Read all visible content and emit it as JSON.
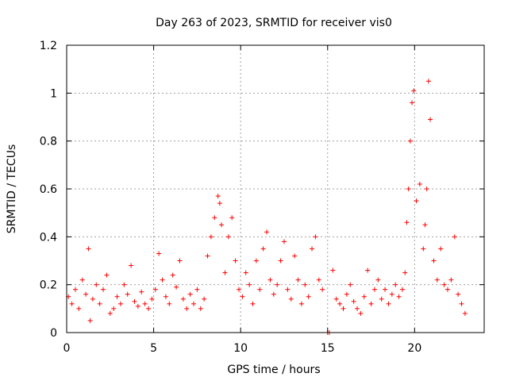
{
  "chart_data": {
    "type": "scatter",
    "title": "Day 263 of 2023, SRMTID for receiver vis0",
    "xlabel": "GPS time / hours",
    "ylabel": "SRMTID / TECUs",
    "xlim": [
      0,
      24
    ],
    "ylim": [
      0,
      1.2
    ],
    "x_ticks": [
      0,
      5,
      10,
      15,
      20
    ],
    "x_tick_labels": [
      "0",
      "5",
      "10",
      "15",
      "20"
    ],
    "y_ticks": [
      0,
      0.2,
      0.4,
      0.6,
      0.8,
      1.0,
      1.2
    ],
    "y_tick_labels": [
      "0",
      "0.2",
      "0.4",
      "0.6",
      "0.8",
      "1",
      "1.2"
    ],
    "grid": true,
    "marker": "plus",
    "color": "#ff0000",
    "series": [
      {
        "name": "vis0",
        "x": [
          0.1,
          0.3,
          0.5,
          0.7,
          0.9,
          1.1,
          1.25,
          1.35,
          1.5,
          1.7,
          1.9,
          2.1,
          2.3,
          2.5,
          2.7,
          2.9,
          3.1,
          3.3,
          3.5,
          3.7,
          3.9,
          4.1,
          4.3,
          4.5,
          4.7,
          4.9,
          5.1,
          5.3,
          5.5,
          5.7,
          5.9,
          6.1,
          6.3,
          6.5,
          6.7,
          6.9,
          7.1,
          7.3,
          7.5,
          7.7,
          7.9,
          8.1,
          8.3,
          8.5,
          8.7,
          8.8,
          8.9,
          9.1,
          9.3,
          9.5,
          9.7,
          9.9,
          10.1,
          10.3,
          10.5,
          10.7,
          10.9,
          11.1,
          11.3,
          11.5,
          11.7,
          11.9,
          12.1,
          12.3,
          12.5,
          12.7,
          12.9,
          13.1,
          13.3,
          13.5,
          13.7,
          13.9,
          14.1,
          14.3,
          14.5,
          14.7,
          15.0,
          15.1,
          15.3,
          15.5,
          15.7,
          15.9,
          16.1,
          16.3,
          16.5,
          16.7,
          16.9,
          17.1,
          17.3,
          17.5,
          17.7,
          17.9,
          18.1,
          18.3,
          18.5,
          18.7,
          18.9,
          19.1,
          19.3,
          19.45,
          19.55,
          19.65,
          19.75,
          19.85,
          19.95,
          20.1,
          20.3,
          20.5,
          20.6,
          20.7,
          20.8,
          20.9,
          21.1,
          21.3,
          21.5,
          21.7,
          21.9,
          22.1,
          22.3,
          22.5,
          22.7,
          22.9
        ],
        "y": [
          0.15,
          0.12,
          0.18,
          0.1,
          0.22,
          0.16,
          0.35,
          0.05,
          0.14,
          0.2,
          0.12,
          0.18,
          0.24,
          0.08,
          0.1,
          0.15,
          0.12,
          0.2,
          0.16,
          0.28,
          0.13,
          0.11,
          0.17,
          0.12,
          0.1,
          0.14,
          0.18,
          0.33,
          0.22,
          0.15,
          0.12,
          0.24,
          0.19,
          0.3,
          0.14,
          0.1,
          0.16,
          0.12,
          0.18,
          0.1,
          0.14,
          0.32,
          0.4,
          0.48,
          0.57,
          0.54,
          0.45,
          0.25,
          0.4,
          0.48,
          0.3,
          0.18,
          0.15,
          0.25,
          0.2,
          0.12,
          0.3,
          0.18,
          0.35,
          0.42,
          0.22,
          0.16,
          0.2,
          0.3,
          0.38,
          0.18,
          0.14,
          0.32,
          0.22,
          0.12,
          0.2,
          0.15,
          0.35,
          0.4,
          0.22,
          0.18,
          0.0,
          0.0,
          0.26,
          0.14,
          0.12,
          0.1,
          0.16,
          0.2,
          0.13,
          0.1,
          0.08,
          0.15,
          0.26,
          0.12,
          0.18,
          0.22,
          0.14,
          0.18,
          0.12,
          0.16,
          0.2,
          0.15,
          0.18,
          0.25,
          0.46,
          0.6,
          0.8,
          0.96,
          1.01,
          0.55,
          0.62,
          0.35,
          0.45,
          0.6,
          1.05,
          0.89,
          0.3,
          0.22,
          0.35,
          0.2,
          0.18,
          0.22,
          0.4,
          0.16,
          0.12,
          0.08
        ]
      }
    ]
  }
}
